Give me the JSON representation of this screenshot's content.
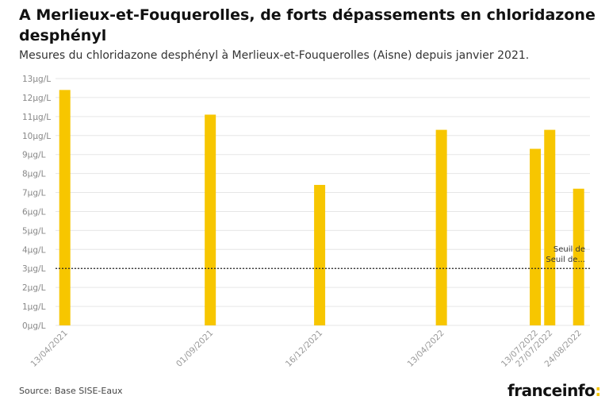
{
  "header": {
    "title": "A Merlieux-et-Fouquerolles, de forts dépassements en chloridazone desphényl",
    "subtitle": "Mesures du chloridazone desphényl à Merlieux-et-Fouquerolles (Aisne) depuis janvier 2021."
  },
  "footer": {
    "source": "Source: Base SISE-Eaux",
    "brand": "franceinfo",
    "brand_suffix": ":"
  },
  "chart_data": {
    "type": "bar",
    "x_type": "date",
    "categories": [
      "13/04/2021",
      "01/09/2021",
      "16/12/2021",
      "13/04/2022",
      "13/07/2022",
      "27/07/2022",
      "24/08/2022"
    ],
    "values": [
      12.4,
      11.1,
      7.4,
      10.3,
      9.3,
      10.3,
      7.2
    ],
    "unit": "µg/L",
    "ylim": [
      0,
      13
    ],
    "yticks": [
      0,
      1,
      2,
      3,
      4,
      5,
      6,
      7,
      8,
      9,
      10,
      11,
      12,
      13
    ],
    "ytick_labels": [
      "0µg/L",
      "1µg/L",
      "2µg/L",
      "3µg/L",
      "4µg/L",
      "5µg/L",
      "6µg/L",
      "7µg/L",
      "8µg/L",
      "9µg/L",
      "10µg/L",
      "11µg/L",
      "12µg/L",
      "13µg/L"
    ],
    "xlim": [
      "2021-04-04",
      "2022-09-04"
    ],
    "bar_dates": [
      "2021-04-13",
      "2021-09-01",
      "2021-12-16",
      "2022-04-13",
      "2022-07-13",
      "2022-07-27",
      "2022-08-24"
    ],
    "threshold": {
      "value": 3,
      "label_line1": "Seuil de",
      "label_line2": "Seuil de..."
    },
    "bar_color": "#f7c600",
    "grid": true
  }
}
